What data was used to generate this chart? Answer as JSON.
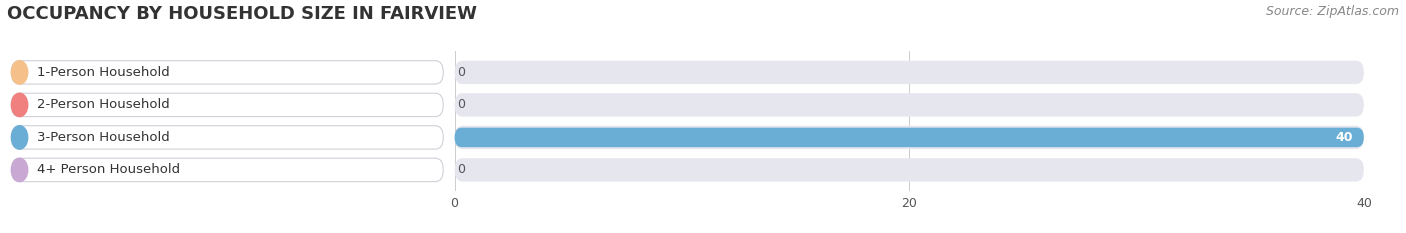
{
  "title": "OCCUPANCY BY HOUSEHOLD SIZE IN FAIRVIEW",
  "source": "Source: ZipAtlas.com",
  "categories": [
    "1-Person Household",
    "2-Person Household",
    "3-Person Household",
    "4+ Person Household"
  ],
  "values": [
    0,
    0,
    40,
    0
  ],
  "bar_colors": [
    "#f5c08a",
    "#f08080",
    "#6aaed6",
    "#c9a8d4"
  ],
  "track_color": "#e6e6ee",
  "xlim": [
    0,
    40
  ],
  "xticks": [
    0,
    20,
    40
  ],
  "background_color": "#ffffff",
  "title_fontsize": 13,
  "source_fontsize": 9,
  "label_fontsize": 9.5,
  "value_fontsize": 9
}
